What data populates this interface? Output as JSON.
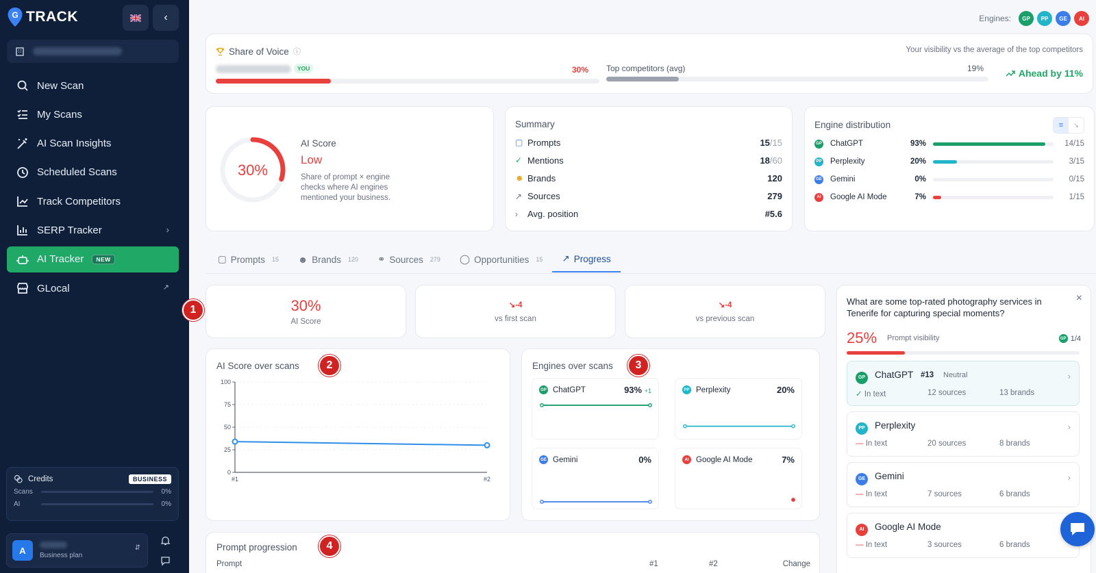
{
  "brand": {
    "name": "TRACK"
  },
  "sidebar": {
    "items": [
      {
        "label": "New Scan",
        "icon": "search-icon"
      },
      {
        "label": "My Scans",
        "icon": "list-check-icon"
      },
      {
        "label": "AI Scan Insights",
        "icon": "wand-icon"
      },
      {
        "label": "Scheduled Scans",
        "icon": "clock-icon"
      },
      {
        "label": "Track Competitors",
        "icon": "line-chart-icon"
      },
      {
        "label": "SERP Tracker",
        "icon": "bar-chart-icon"
      },
      {
        "label": "AI Tracker",
        "icon": "robot-icon",
        "badge": "NEW"
      },
      {
        "label": "GLocal",
        "icon": "store-icon"
      }
    ],
    "credits": {
      "title": "Credits",
      "plan_badge": "BUSINESS",
      "scans_label": "Scans",
      "scans_value": "0%",
      "ai_label": "AI",
      "ai_value": "0%"
    },
    "user": {
      "initial": "A",
      "plan": "Business plan"
    }
  },
  "header": {
    "engines_label": "Engines:",
    "engines": [
      {
        "abbr": "GP",
        "color": "#1a9e6a"
      },
      {
        "abbr": "PP",
        "color": "#22b5c9"
      },
      {
        "abbr": "GE",
        "color": "#3d7de8"
      },
      {
        "abbr": "AI",
        "color": "#e8403c"
      }
    ]
  },
  "share_of_voice": {
    "title": "Share of Voice",
    "you_badge": "YOU",
    "you_value": "30%",
    "competitors_label": "Top competitors (avg)",
    "competitors_value": "19%",
    "visibility_note": "Your visibility vs the average of the top competitors",
    "ahead": "Ahead by 11%",
    "you_pct": 30,
    "competitors_pct": 19
  },
  "ai_score": {
    "value": "30%",
    "label": "AI Score",
    "level": "Low",
    "description": "Share of prompt × engine checks where AI engines mentioned your business.",
    "pct": 30
  },
  "summary": {
    "title": "Summary",
    "rows": [
      {
        "label": "Prompts",
        "value": "15",
        "total": "/15",
        "icon": "chat-icon"
      },
      {
        "label": "Mentions",
        "value": "18",
        "total": "/60",
        "icon": "check-icon"
      },
      {
        "label": "Brands",
        "value": "120",
        "total": "",
        "icon": "users-icon"
      },
      {
        "label": "Sources",
        "value": "279",
        "total": "",
        "icon": "external-link-icon"
      },
      {
        "label": "Avg. position",
        "value": "#5.6",
        "total": "",
        "icon": "chevron-right-icon"
      }
    ]
  },
  "engine_distribution": {
    "title": "Engine distribution",
    "rows": [
      {
        "abbr": "GP",
        "name": "ChatGPT",
        "pct": "93%",
        "count": "14/15",
        "color": "#1a9e6a",
        "fill": 0.93
      },
      {
        "abbr": "PP",
        "name": "Perplexity",
        "pct": "20%",
        "count": "3/15",
        "color": "#22b5c9",
        "fill": 0.2
      },
      {
        "abbr": "GE",
        "name": "Gemini",
        "pct": "0%",
        "count": "0/15",
        "color": "#3d7de8",
        "fill": 0
      },
      {
        "abbr": "AI",
        "name": "Google AI Mode",
        "pct": "7%",
        "count": "1/15",
        "color": "#e8403c",
        "fill": 0.07
      }
    ]
  },
  "tabs": [
    {
      "label": "Prompts",
      "count": "15",
      "icon": "chat-icon"
    },
    {
      "label": "Brands",
      "count": "120",
      "icon": "users-icon"
    },
    {
      "label": "Sources",
      "count": "279",
      "icon": "link-icon"
    },
    {
      "label": "Opportunities",
      "count": "15",
      "icon": "bulb-icon"
    },
    {
      "label": "Progress",
      "count": "",
      "icon": "trend-icon"
    }
  ],
  "stats": {
    "score_value": "30%",
    "score_label": "AI Score",
    "first_delta": "-4",
    "first_label": "vs first scan",
    "prev_delta": "-4",
    "prev_label": "vs previous scan"
  },
  "markers": [
    "1",
    "2",
    "3",
    "4"
  ],
  "ai_score_chart": {
    "title": "AI Score over scans"
  },
  "chart_data": {
    "type": "line",
    "categories": [
      "#1",
      "#2"
    ],
    "series": [
      {
        "values": [
          34,
          30
        ]
      }
    ],
    "ylim": [
      0,
      100
    ],
    "yticks": [
      0,
      25,
      50,
      75,
      100
    ],
    "xlabel": "",
    "ylabel": ""
  },
  "engines_chart": {
    "title": "Engines over scans",
    "engines": [
      {
        "abbr": "GP",
        "name": "ChatGPT",
        "pct": "93%",
        "delta": "+1",
        "color": "#1a9e6a",
        "values": [
          93,
          93
        ]
      },
      {
        "abbr": "PP",
        "name": "Perplexity",
        "pct": "20%",
        "delta": "",
        "color": "#22b5c9",
        "values": [
          20,
          20
        ]
      },
      {
        "abbr": "GE",
        "name": "Gemini",
        "pct": "0%",
        "delta": "",
        "color": "#3d7de8",
        "values": [
          0,
          0
        ]
      },
      {
        "abbr": "AI",
        "name": "Google AI Mode",
        "pct": "7%",
        "delta": "",
        "color": "#e8403c",
        "values": [
          null,
          7
        ]
      }
    ]
  },
  "prompt_progression": {
    "title": "Prompt progression",
    "col_prompt": "Prompt",
    "col_1": "#1",
    "col_2": "#2",
    "col_change": "Change"
  },
  "prompt_panel": {
    "question": "What are some top-rated photography services in Tenerife for capturing special moments?",
    "visibility_value": "25%",
    "visibility_label": "Prompt visibility",
    "count": "1/4",
    "pct": 25,
    "engines": [
      {
        "abbr": "GP",
        "name": "ChatGPT",
        "rank": "#13",
        "sentiment": "Neutral",
        "in_text": "In text",
        "sources": "12 sources",
        "brands": "13 brands",
        "color": "#1a9e6a",
        "mentioned": true
      },
      {
        "abbr": "PP",
        "name": "Perplexity",
        "rank": "",
        "sentiment": "",
        "in_text": "In text",
        "sources": "20 sources",
        "brands": "8 brands",
        "color": "#22b5c9",
        "mentioned": false
      },
      {
        "abbr": "GE",
        "name": "Gemini",
        "rank": "",
        "sentiment": "",
        "in_text": "In text",
        "sources": "7 sources",
        "brands": "6 brands",
        "color": "#3d7de8",
        "mentioned": false
      },
      {
        "abbr": "AI",
        "name": "Google AI Mode",
        "rank": "",
        "sentiment": "",
        "in_text": "In text",
        "sources": "3 sources",
        "brands": "6 brands",
        "color": "#e8403c",
        "mentioned": false
      }
    ]
  }
}
